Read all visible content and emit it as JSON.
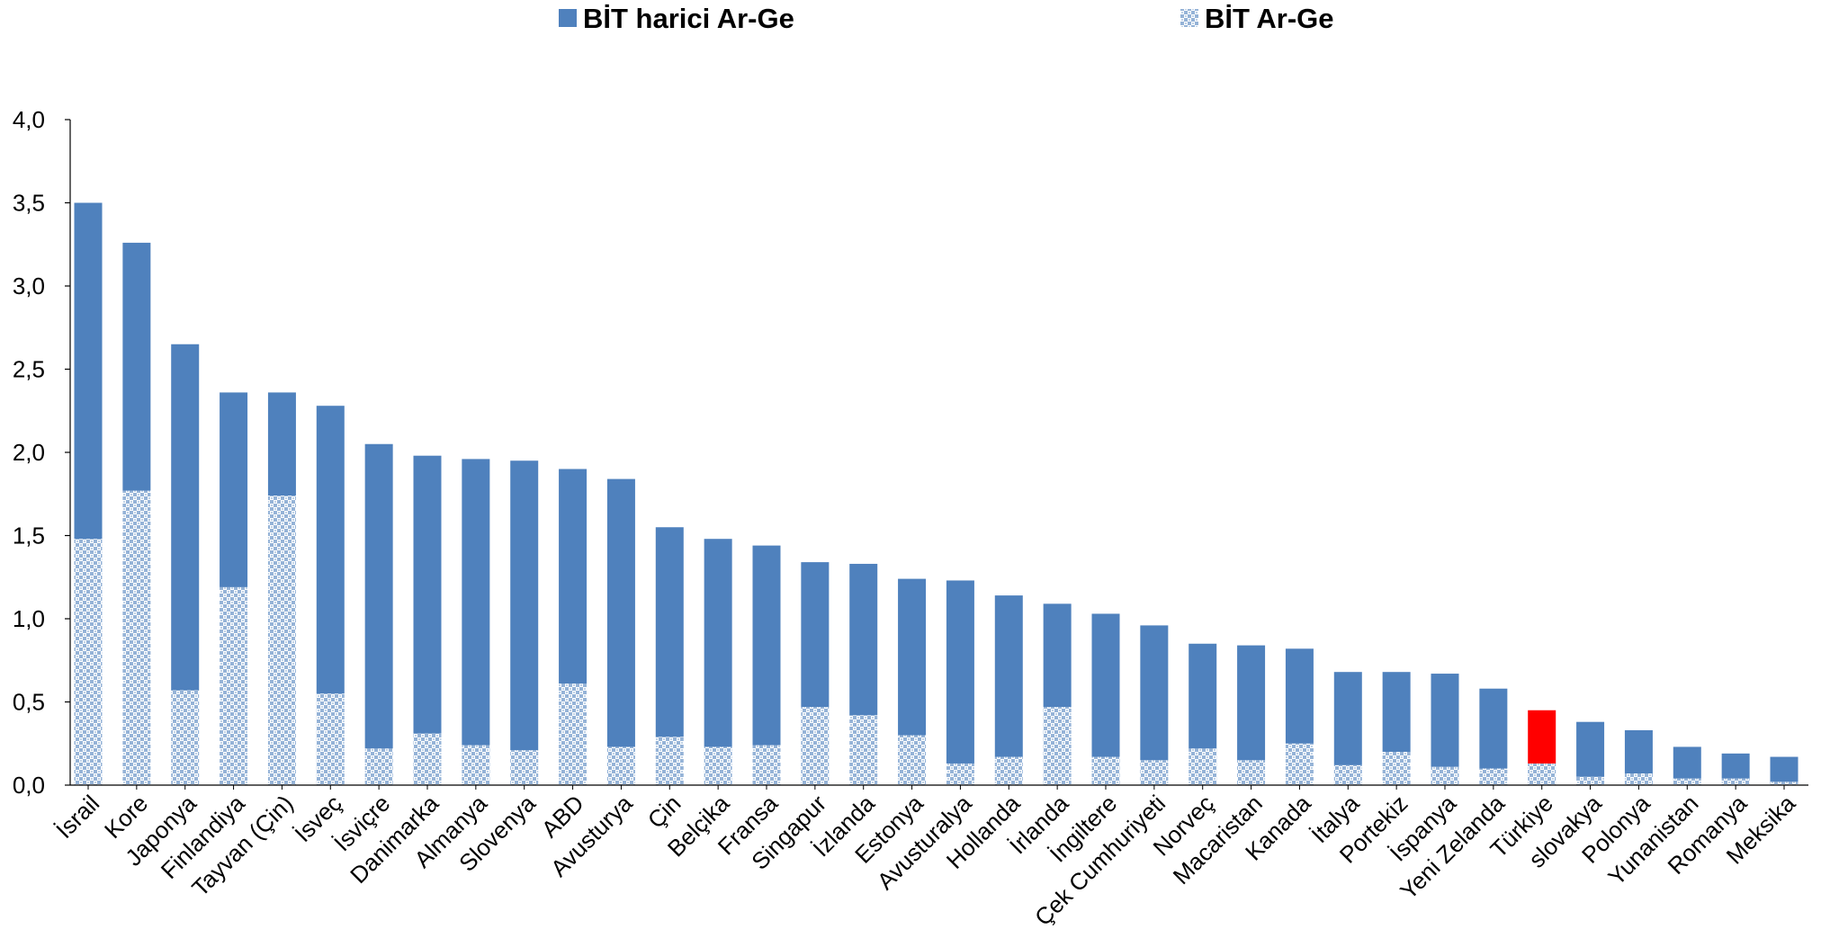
{
  "chart_data": {
    "type": "bar",
    "stacked": true,
    "legend": [
      {
        "label": "BİT harici Ar-Ge",
        "color": "#4F81BD",
        "pattern": "solid"
      },
      {
        "label": "BİT Ar-Ge",
        "color": "#95B3D7",
        "pattern": "dotted"
      }
    ],
    "legend_position": "top",
    "highlight": {
      "category": "Türkiye",
      "color": "#FF0000"
    },
    "ylim": [
      0,
      4.0
    ],
    "yticks": [
      "0,0",
      "0,5",
      "1,0",
      "1,5",
      "2,0",
      "2,5",
      "3,0",
      "3,5",
      "4,0"
    ],
    "categories": [
      "İsrail",
      "Kore",
      "Japonya",
      "Finlandiya",
      "Tayvan (Çin)",
      "İsveç",
      "İsviçre",
      "Danimarka",
      "Almanya",
      "Slovenya",
      "ABD",
      "Avusturya",
      "Çin",
      "Belçika",
      "Fransa",
      "Singapur",
      "İzlanda",
      "Estonya",
      "Avusturalya",
      "Hollanda",
      "İrlanda",
      "İngiltere",
      "Çek Cumhuriyeti",
      "Norveç",
      "Macaristan",
      "Kanada",
      "İtalya",
      "Portekiz",
      "İspanya",
      "Yeni Zelanda",
      "Türkiye",
      "slovakya",
      "Polonya",
      "Yunanistan",
      "Romanya",
      "Meksika"
    ],
    "series": [
      {
        "name": "BİT Ar-Ge",
        "values": [
          1.48,
          1.77,
          0.57,
          1.19,
          1.74,
          0.55,
          0.22,
          0.31,
          0.24,
          0.21,
          0.61,
          0.23,
          0.29,
          0.23,
          0.24,
          0.47,
          0.42,
          0.3,
          0.13,
          0.17,
          0.47,
          0.17,
          0.15,
          0.22,
          0.15,
          0.25,
          0.12,
          0.2,
          0.11,
          0.1,
          0.13,
          0.05,
          0.07,
          0.04,
          0.04,
          0.02
        ]
      },
      {
        "name": "BİT harici Ar-Ge",
        "values": [
          2.02,
          1.49,
          2.08,
          1.17,
          0.62,
          1.73,
          1.83,
          1.67,
          1.72,
          1.74,
          1.29,
          1.61,
          1.26,
          1.25,
          1.2,
          0.87,
          0.91,
          0.94,
          1.1,
          0.97,
          0.62,
          0.86,
          0.81,
          0.63,
          0.69,
          0.57,
          0.56,
          0.48,
          0.56,
          0.48,
          0.32,
          0.33,
          0.26,
          0.19,
          0.15,
          0.15
        ]
      }
    ]
  }
}
